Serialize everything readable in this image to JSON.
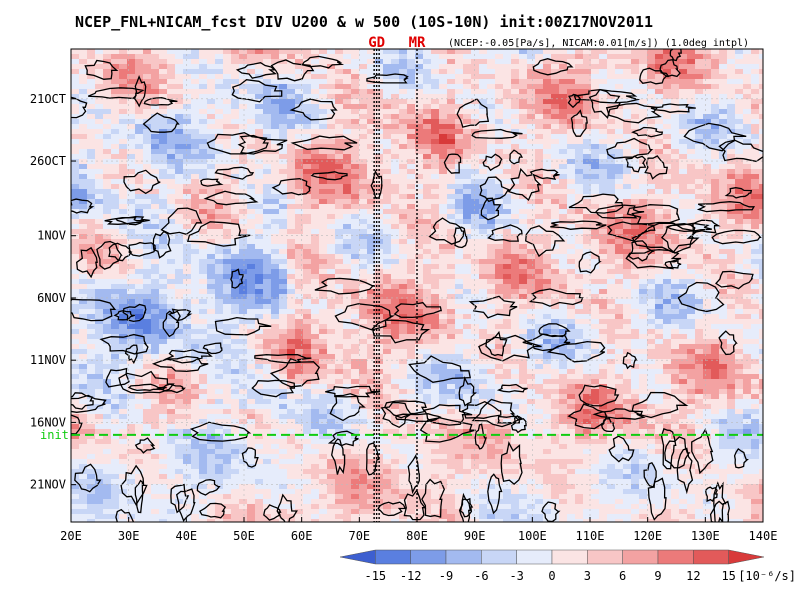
{
  "chart_data": {
    "type": "heatmap",
    "title": "NCEP_FNL+NICAM_fcst DIV U200 & w 500 (10S-10N) init:00Z17NOV2011",
    "subtitle": "(NCEP:-0.05[Pa/s], NICAM:0.01[m/s]) (1.0deg intpl)",
    "x_ticks": [
      "20E",
      "30E",
      "40E",
      "50E",
      "60E",
      "70E",
      "80E",
      "90E",
      "100E",
      "110E",
      "120E",
      "130E",
      "140E"
    ],
    "y_ticks": [
      "21OCT",
      "26OCT",
      "1NOV",
      "6NOV",
      "11NOV",
      "16NOV",
      "21NOV"
    ],
    "xlim": [
      20,
      140
    ],
    "y_range": [
      "17OCT2011",
      "24NOV2011"
    ],
    "init_label": "init",
    "init_date": "17NOV2011",
    "markers": [
      {
        "label": "GD",
        "lon": 73
      },
      {
        "label": "MR",
        "lon": 80
      }
    ],
    "colorbar": {
      "levels": [
        "-15",
        "-12",
        "-9",
        "-6",
        "-3",
        "0",
        "3",
        "6",
        "9",
        "12",
        "15"
      ],
      "units": "[10⁻⁶/s]",
      "colors": [
        "#3d5fd0",
        "#5a7fe0",
        "#7d9ce8",
        "#a3baf0",
        "#c8d6f6",
        "#e6ecfb",
        "#fbe4e4",
        "#f8c6c6",
        "#f3a2a2",
        "#ec7a7a",
        "#e25a5a",
        "#d83a3a"
      ]
    },
    "contour_field": "w 500"
  }
}
